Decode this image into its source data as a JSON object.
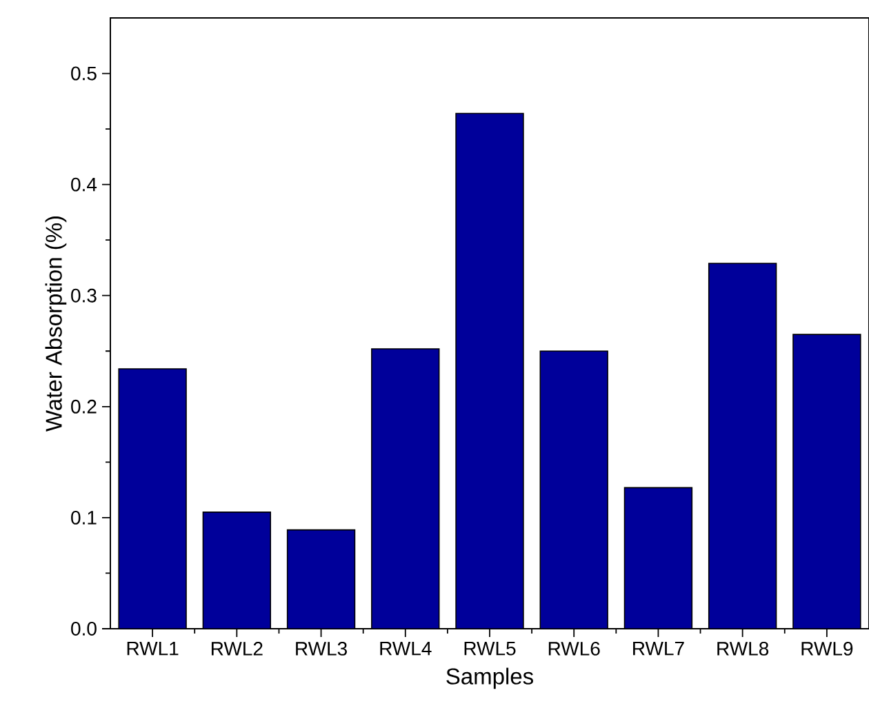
{
  "chart_data": {
    "type": "bar",
    "xlabel": "Samples",
    "ylabel": "Water Absorption (%)",
    "categories": [
      "RWL1",
      "RWL2",
      "RWL3",
      "RWL4",
      "RWL5",
      "RWL6",
      "RWL7",
      "RWL8",
      "RWL9"
    ],
    "values": [
      0.234,
      0.105,
      0.089,
      0.252,
      0.464,
      0.25,
      0.127,
      0.329,
      0.265
    ],
    "color": "#00009a",
    "ylim": [
      0,
      0.55
    ],
    "yticks": [
      {
        "value": 0,
        "label": "0.0"
      },
      0.1,
      0.2,
      0.3,
      0.4,
      0.5
    ]
  }
}
